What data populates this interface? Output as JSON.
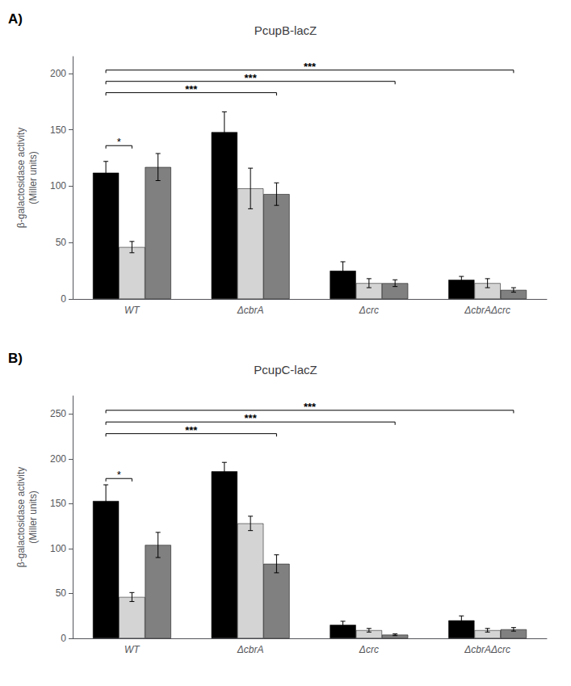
{
  "chart_data": [
    {
      "type": "bar",
      "title": "PcupB-lacZ",
      "ylabel": "β-galactosidase activity\n(Miller units)",
      "categories": [
        "WT",
        "ΔcbrA",
        "Δcrc",
        "ΔcbrAΔcrc"
      ],
      "series": [
        {
          "color": "#000000",
          "values": [
            112,
            148,
            25,
            17
          ],
          "errors": [
            10,
            18,
            8,
            3
          ]
        },
        {
          "color": "#d4d4d4",
          "values": [
            46,
            98,
            14,
            14
          ],
          "errors": [
            5,
            18,
            4,
            4
          ]
        },
        {
          "color": "#808080",
          "values": [
            117,
            93,
            14,
            8
          ],
          "errors": [
            12,
            10,
            3,
            2
          ]
        }
      ],
      "ylim": [
        0,
        215
      ],
      "yticks": [
        0,
        50,
        100,
        150,
        200
      ],
      "grid": false,
      "annotations": [
        {
          "label": "A)"
        },
        {
          "label": "*",
          "y": 136,
          "category": "WT"
        },
        {
          "label": "***",
          "y": 183,
          "from": "WT",
          "to": "ΔcbrA"
        },
        {
          "label": "***",
          "y": 193,
          "from": "WT",
          "to": "Δcrc"
        },
        {
          "label": "***",
          "y": 203,
          "from": "WT",
          "to": "ΔcbrAΔcrc"
        }
      ]
    },
    {
      "type": "bar",
      "title": "PcupC-lacZ",
      "ylabel": "β-galactosidase activity\n(Miller units)",
      "categories": [
        "WT",
        "ΔcbrA",
        "Δcrc",
        "ΔcbrAΔcrc"
      ],
      "series": [
        {
          "color": "#000000",
          "values": [
            153,
            186,
            15,
            20
          ],
          "errors": [
            18,
            10,
            4,
            5
          ]
        },
        {
          "color": "#d4d4d4",
          "values": [
            46,
            128,
            9,
            9
          ],
          "errors": [
            5,
            8,
            2,
            2
          ]
        },
        {
          "color": "#808080",
          "values": [
            104,
            83,
            4,
            10
          ],
          "errors": [
            14,
            10,
            1,
            2
          ]
        }
      ],
      "ylim": [
        0,
        270
      ],
      "yticks": [
        0,
        50,
        100,
        150,
        200,
        250
      ],
      "grid": false,
      "annotations": [
        {
          "label": "B)"
        },
        {
          "label": "*",
          "y": 178,
          "category": "WT"
        },
        {
          "label": "***",
          "y": 228,
          "from": "WT",
          "to": "ΔcbrA"
        },
        {
          "label": "***",
          "y": 241,
          "from": "WT",
          "to": "Δcrc"
        },
        {
          "label": "***",
          "y": 254,
          "from": "WT",
          "to": "ΔcbrAΔcrc"
        }
      ]
    }
  ]
}
